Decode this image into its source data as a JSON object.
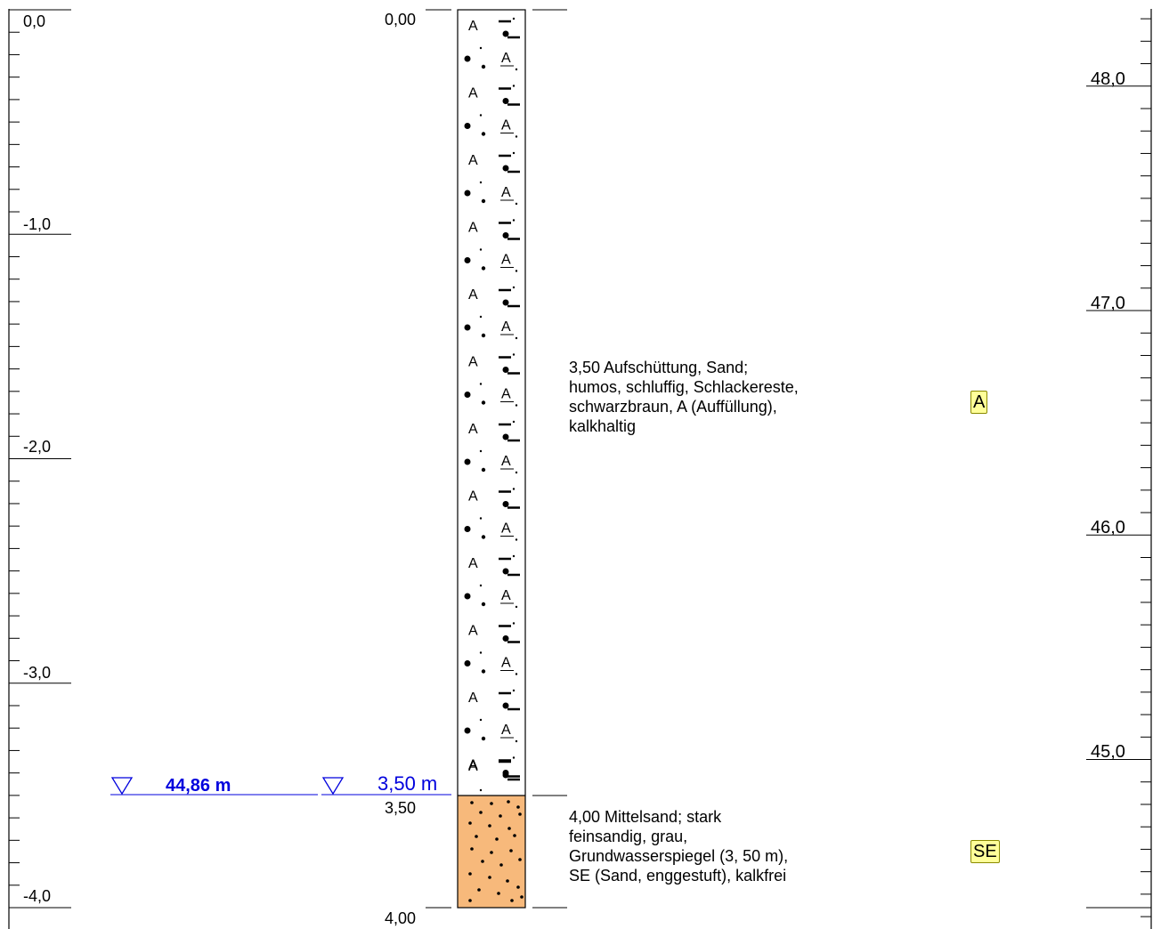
{
  "left_scale": {
    "labels": [
      "0,0",
      "-1,0",
      "-2,0",
      "-3,0",
      "-4,0"
    ],
    "values": [
      0,
      -1,
      -2,
      -3,
      -4
    ]
  },
  "right_scale": {
    "labels": [
      "48,0",
      "47,0",
      "46,0",
      "45,0"
    ],
    "values": [
      48,
      47,
      46,
      45
    ]
  },
  "column": {
    "top_label": "0,00",
    "bottom_label": "4,00",
    "boundary_label": "3,50"
  },
  "groundwater": {
    "elevation_label": "44,86 m",
    "depth_label": "3,50 m",
    "color": "#0000dd"
  },
  "layers": [
    {
      "from": 0.0,
      "to": 3.5,
      "description": "3,50  Aufschüttung, Sand;\nhumos, schluffig, Schlackereste,\nschwarzbraun, A (Auffüllung),\nkalkhaltig",
      "code": "A",
      "fill": "#ffffff"
    },
    {
      "from": 3.5,
      "to": 4.0,
      "description": "4,00  Mittelsand; stark\nfeinsandig, grau,\nGrundwasserspiegel (3, 50 m),\nSE (Sand, enggestuft), kalkfrei",
      "code": "SE",
      "fill": "#f7b97b"
    }
  ],
  "badge_color": "#ffff99"
}
